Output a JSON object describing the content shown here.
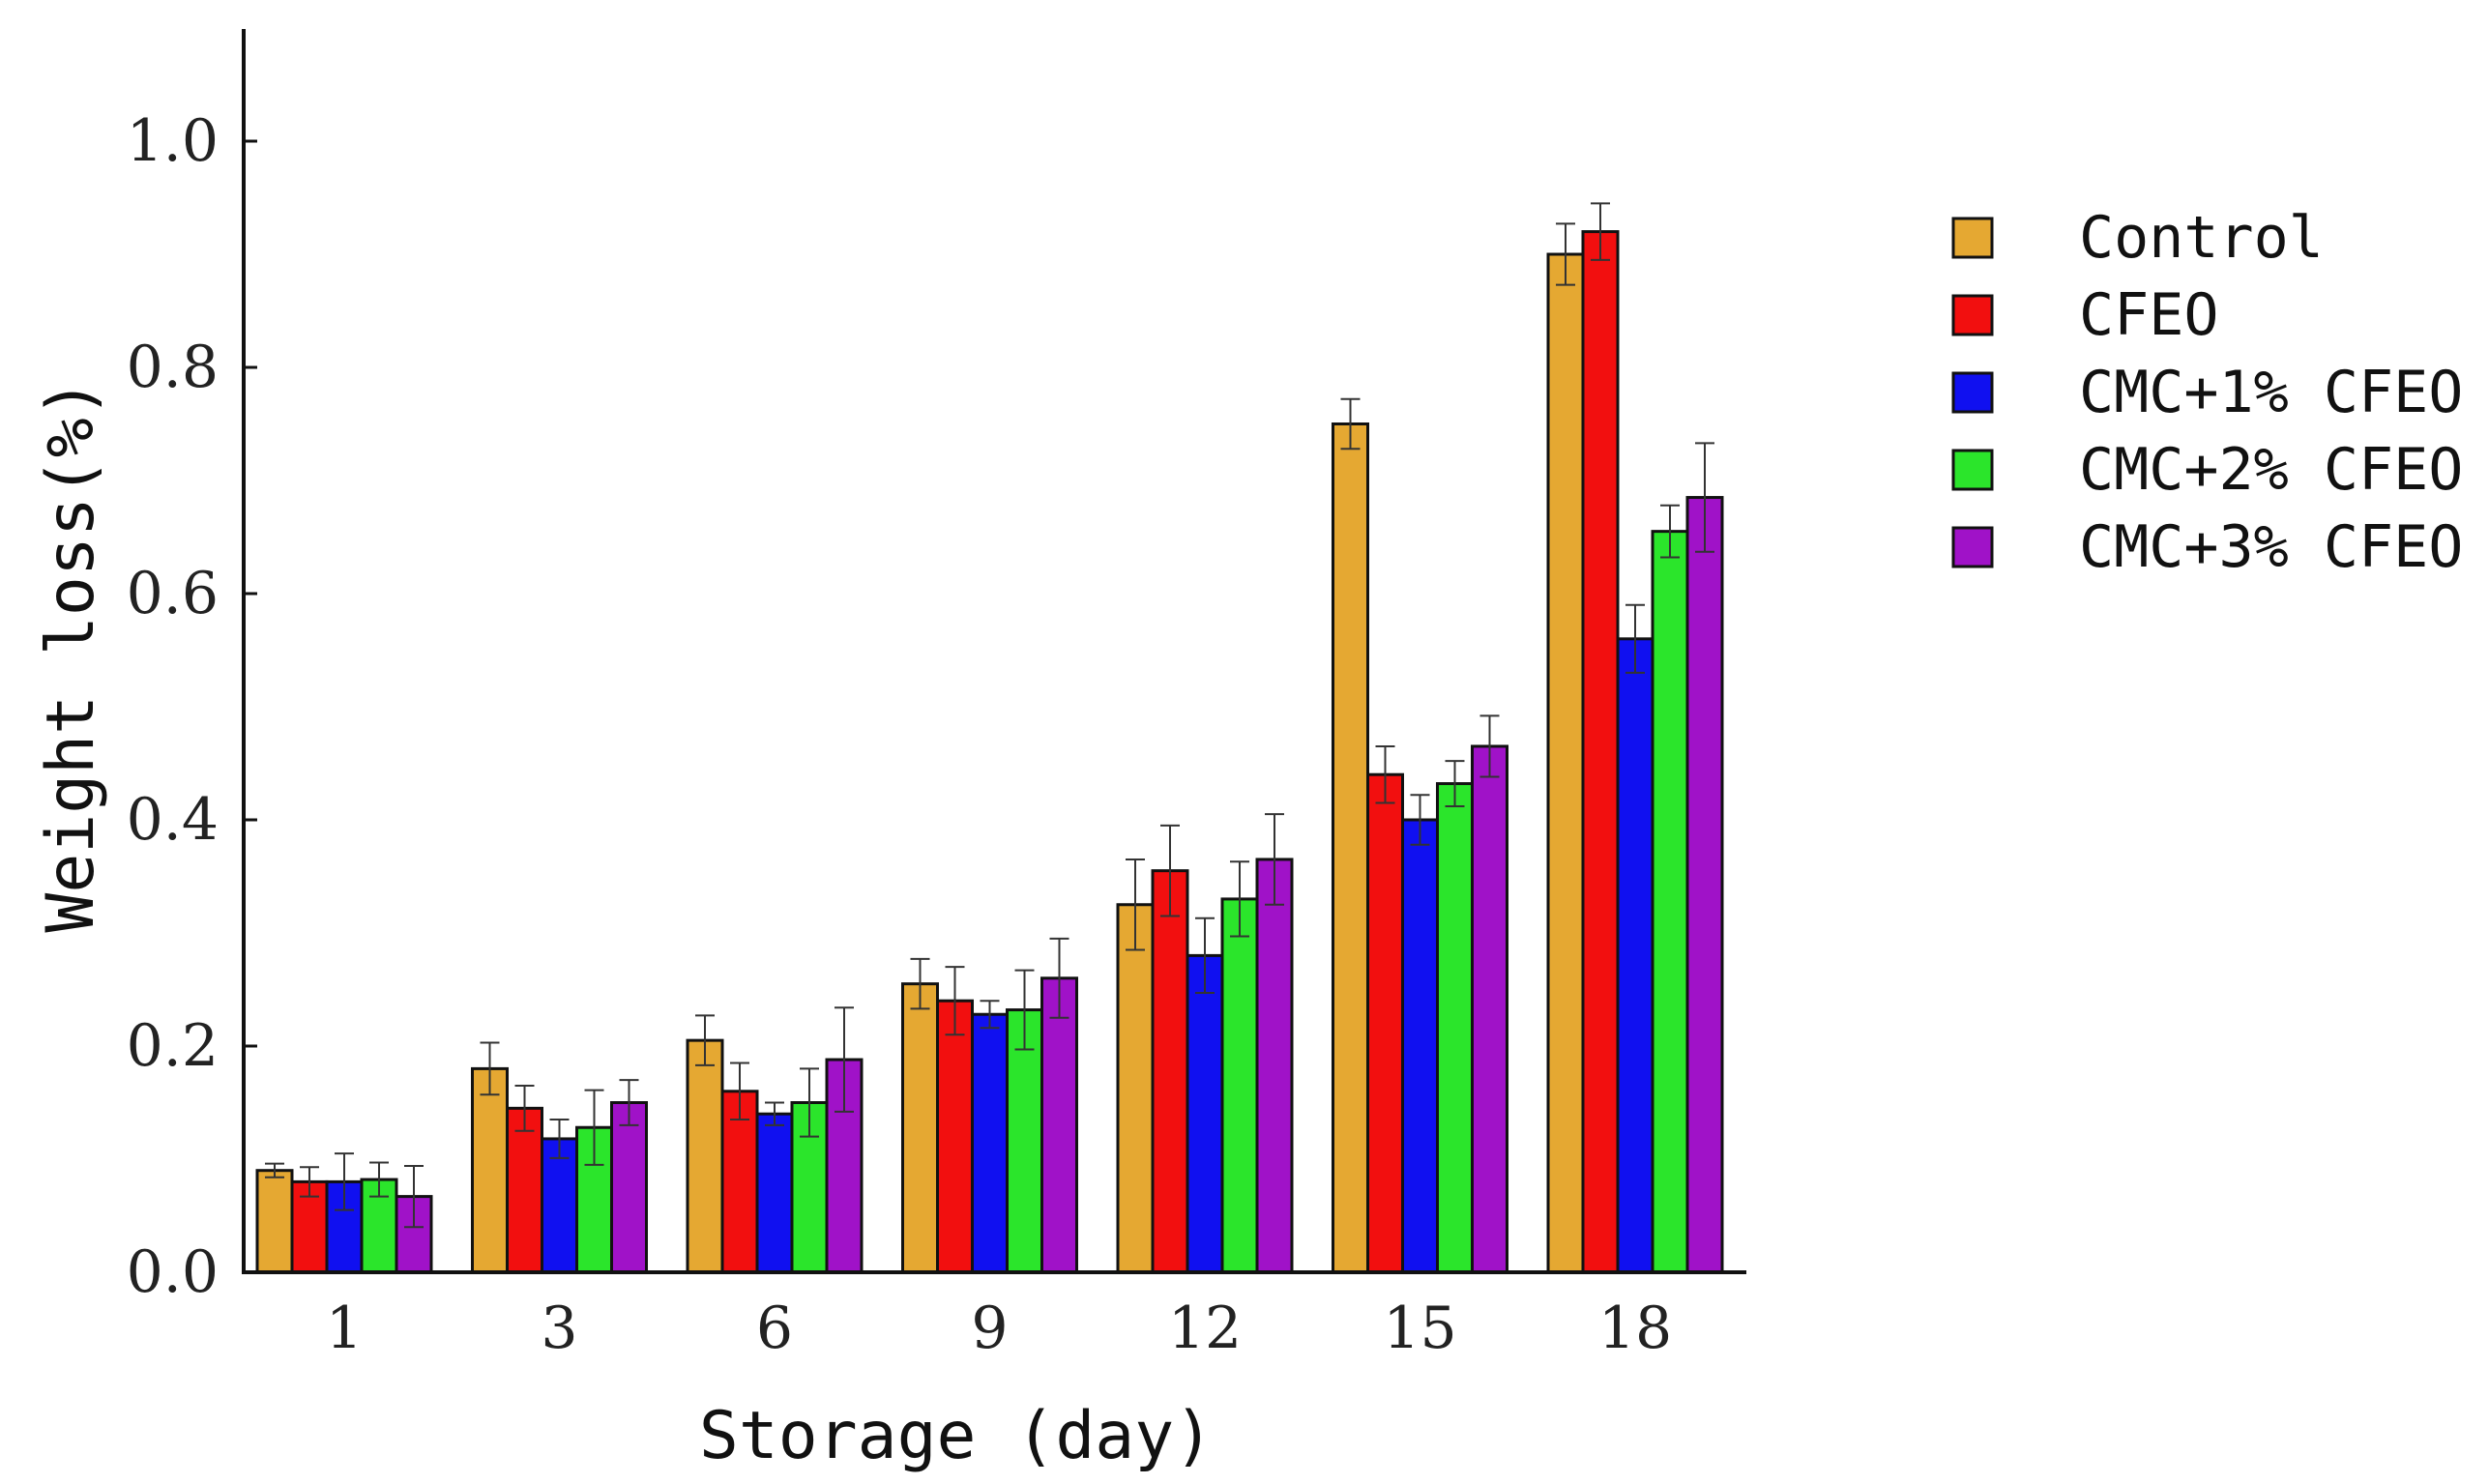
{
  "chart_data": {
    "type": "bar",
    "title": "",
    "xlabel": "Storage (day)",
    "ylabel": "Weight loss(%)",
    "ylim": [
      0,
      1.1
    ],
    "yticks": [
      0.0,
      0.2,
      0.4,
      0.6,
      0.8,
      1.0
    ],
    "ytick_labels": [
      "0.0",
      "0.2",
      "0.4",
      "0.6",
      "0.8",
      "1.0"
    ],
    "grid": false,
    "legend_position": "right",
    "categories": [
      "1",
      "3",
      "6",
      "9",
      "12",
      "15",
      "18"
    ],
    "series": [
      {
        "name": "Control",
        "color": "#E5A832",
        "values": [
          0.09,
          0.18,
          0.205,
          0.255,
          0.325,
          0.75,
          0.9
        ],
        "errors": [
          0.006,
          0.023,
          0.022,
          0.022,
          0.04,
          0.022,
          0.027
        ]
      },
      {
        "name": "CFEO",
        "color": "#F20F0F",
        "values": [
          0.08,
          0.145,
          0.16,
          0.24,
          0.355,
          0.44,
          0.92
        ],
        "errors": [
          0.013,
          0.02,
          0.025,
          0.03,
          0.04,
          0.025,
          0.025
        ]
      },
      {
        "name": "CMC+1% CFEO",
        "color": "#1010F0",
        "values": [
          0.08,
          0.118,
          0.14,
          0.228,
          0.28,
          0.4,
          0.56
        ],
        "errors": [
          0.025,
          0.017,
          0.01,
          0.012,
          0.033,
          0.022,
          0.03
        ]
      },
      {
        "name": "CMC+2% CFEO",
        "color": "#2BE52B",
        "values": [
          0.082,
          0.128,
          0.15,
          0.232,
          0.33,
          0.432,
          0.655
        ],
        "errors": [
          0.015,
          0.033,
          0.03,
          0.035,
          0.033,
          0.02,
          0.023
        ]
      },
      {
        "name": "CMC+3% CFEO",
        "color": "#A012C8",
        "values": [
          0.067,
          0.15,
          0.188,
          0.26,
          0.365,
          0.465,
          0.685
        ],
        "errors": [
          0.027,
          0.02,
          0.046,
          0.035,
          0.04,
          0.027,
          0.048
        ]
      }
    ]
  }
}
